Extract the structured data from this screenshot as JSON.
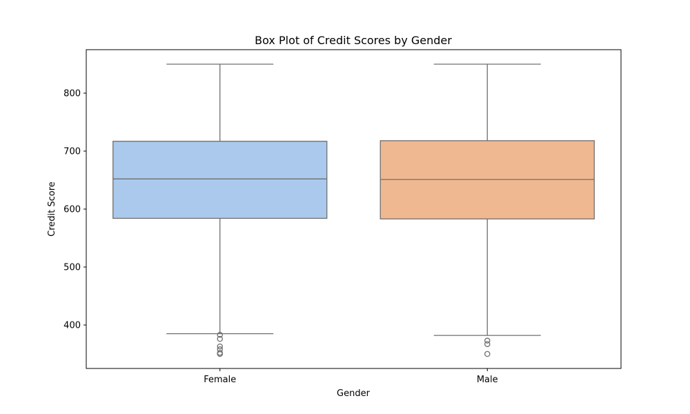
{
  "chart_data": {
    "type": "box",
    "title": "Box Plot of Credit Scores by Gender",
    "xlabel": "Gender",
    "ylabel": "Credit Score",
    "ylim": [
      325,
      875
    ],
    "yticks": [
      400,
      500,
      600,
      700,
      800
    ],
    "grid": false,
    "categories": [
      "Female",
      "Male"
    ],
    "series": [
      {
        "category": "Female",
        "color": "#abc9ec",
        "whisker_low": 385,
        "q1": 584,
        "median": 652,
        "q3": 717,
        "whisker_high": 850,
        "outliers": [
          383,
          376,
          363,
          358,
          352,
          350
        ]
      },
      {
        "category": "Male",
        "color": "#f0b891",
        "whisker_low": 382,
        "q1": 583,
        "median": 651,
        "q3": 718,
        "whisker_high": 850,
        "outliers": [
          373,
          367,
          350
        ]
      }
    ]
  }
}
